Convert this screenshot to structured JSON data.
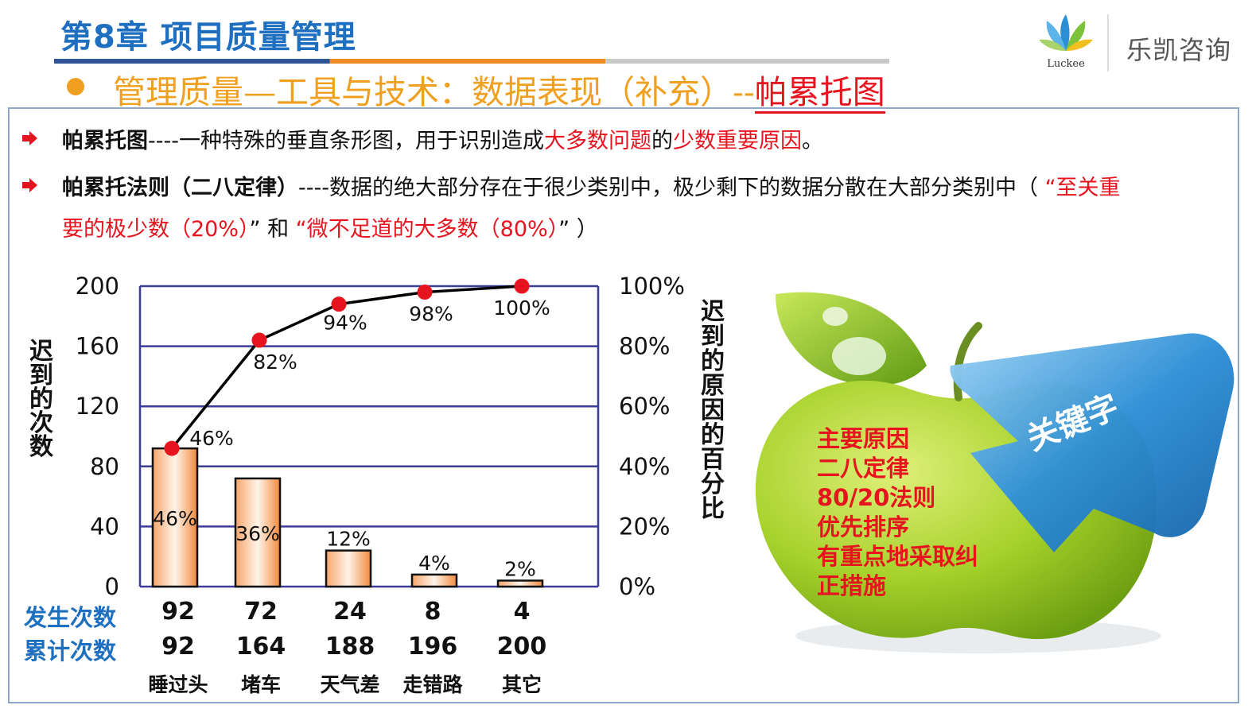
{
  "header": {
    "chapter_title": "第8章 项目质量管理",
    "subtitle_main": "管理质量—工具与技术：数据表现（补充）--",
    "subtitle_highlight": "帕累托图",
    "brand_name": "乐凯咨询",
    "logo_text": "Luckee"
  },
  "bullets": [
    {
      "term": "帕累托图",
      "text1": "----一种特殊的垂直条形图，用于识别造成",
      "red1": "大多数问题",
      "text2": "的",
      "red2": "少数重要原因",
      "text3": "。"
    },
    {
      "term": "帕累托法则（二八定律）",
      "text1": "----数据的绝大部分存在于很少类别中，极少剩下的数据分散在大部分类别中（ ",
      "red1": "“至关重",
      "line2_red1": "要的极少数（20%）",
      "line2_text1": "” 和 ",
      "line2_red2": "“微不足道的大多数（80%）",
      "line2_text2": "”  ）"
    }
  ],
  "chart_data": {
    "type": "bar",
    "categories": [
      "睡过头",
      "堵车",
      "天气差",
      "走错路",
      "其它"
    ],
    "series": [
      {
        "values": [
          92,
          72,
          24,
          8,
          4
        ],
        "bar_labels": [
          "46%",
          "36%",
          "12%",
          "4%",
          "2%"
        ]
      },
      {
        "values": [
          46,
          82,
          94,
          98,
          100
        ],
        "point_labels": [
          "46%",
          "82%",
          "94%",
          "98%",
          "100%"
        ]
      }
    ],
    "cumulative_counts": [
      92,
      164,
      188,
      196,
      200
    ],
    "ylabel": "迟到的次数",
    "y2label": "迟到的原因的百分比",
    "ylim": [
      0,
      200
    ],
    "y2lim": [
      0,
      100
    ],
    "yticks": [
      "200",
      "160",
      "120",
      "80",
      "40",
      "0"
    ],
    "y2ticks": [
      "100%",
      "80%",
      "60%",
      "40%",
      "20%",
      "0%"
    ],
    "row_labels": {
      "count": "发生次数",
      "cumulative": "累计次数"
    },
    "grid": true,
    "colors": {
      "bar_fill": "#f7a56a",
      "line": "#000000",
      "point": "#e6141e",
      "grid": "#3b3b9a"
    }
  },
  "keywords": {
    "badge": "关键字",
    "items": [
      "主要原因",
      "二八定律",
      "80/20法则",
      "优先排序",
      "有重点地采取纠",
      "正措施"
    ]
  }
}
